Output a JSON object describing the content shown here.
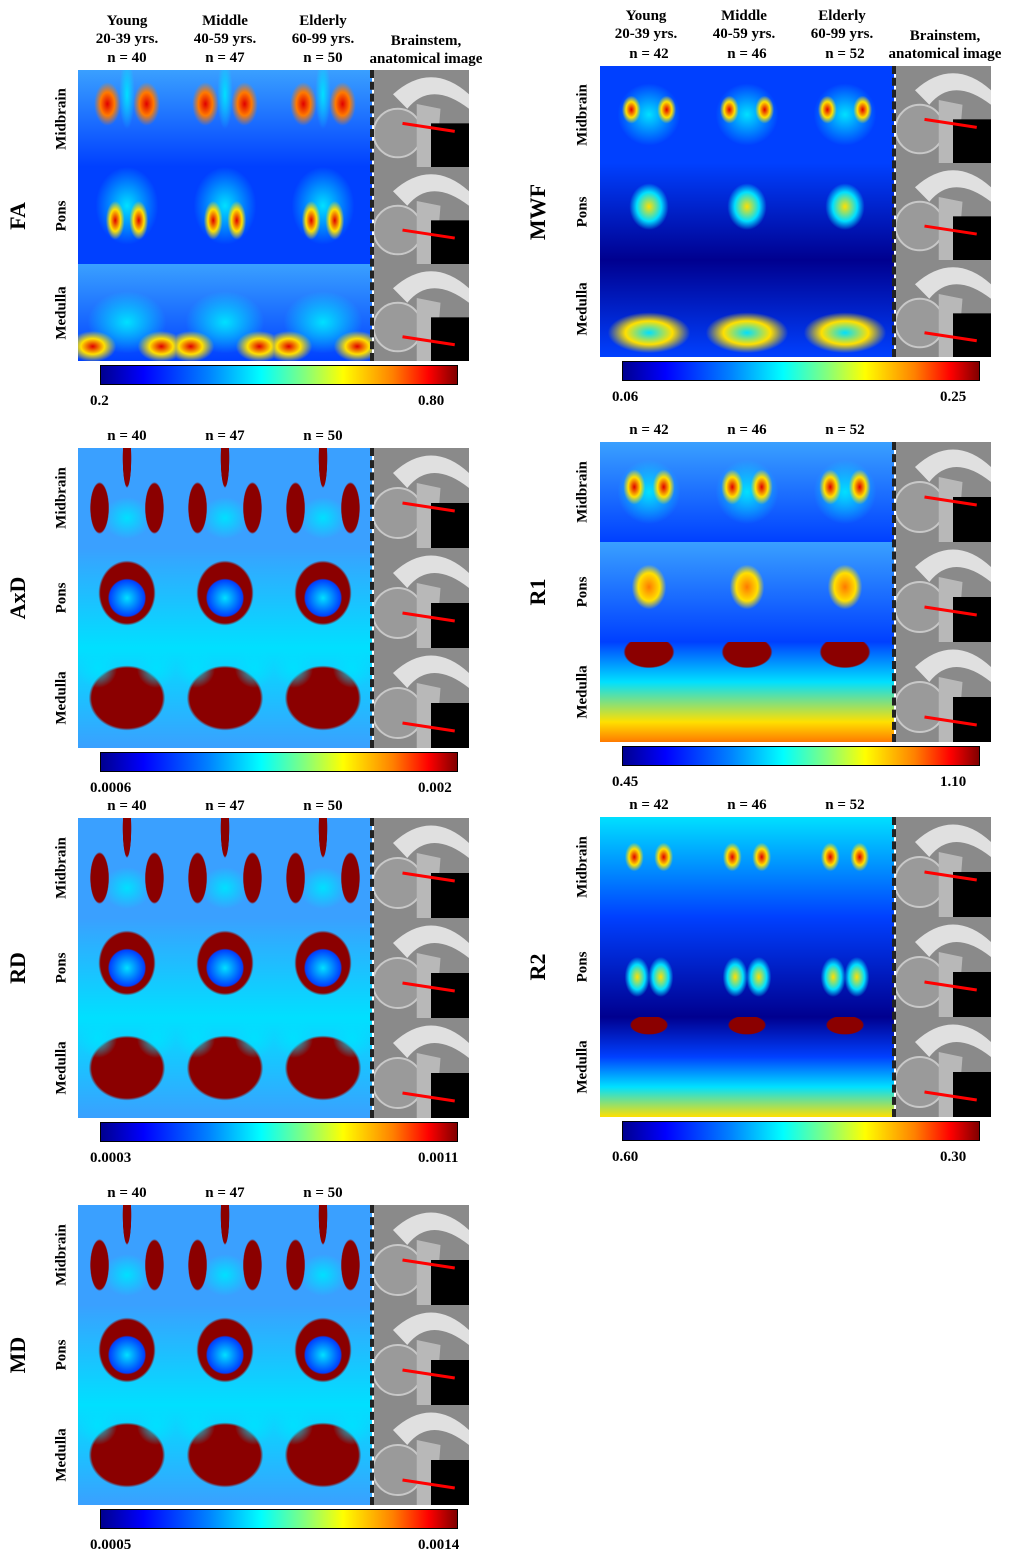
{
  "columns": {
    "age_groups": [
      {
        "group": "Young",
        "years": "20-39 yrs."
      },
      {
        "group": "Middle",
        "years": "40-59 yrs."
      },
      {
        "group": "Elderly",
        "years": "60-99 yrs."
      }
    ],
    "anatomical_header": [
      "Brainstem,",
      "anatomical image"
    ]
  },
  "regions": [
    "Midbrain",
    "Pons",
    "Medulla"
  ],
  "left_panels": [
    {
      "metric": "FA",
      "n": [
        "n = 40",
        "n = 47",
        "n = 50"
      ],
      "cbar_min": "0.2",
      "cbar_max": "0.80",
      "style": "fa"
    },
    {
      "metric": "AxD",
      "n": [
        "n = 40",
        "n = 47",
        "n = 50"
      ],
      "cbar_min": "0.0006",
      "cbar_max": "0.002",
      "style": "diff"
    },
    {
      "metric": "RD",
      "n": [
        "n = 40",
        "n = 47",
        "n = 50"
      ],
      "cbar_min": "0.0003",
      "cbar_max": "0.0011",
      "style": "diff"
    },
    {
      "metric": "MD",
      "n": [
        "n = 40",
        "n = 47",
        "n = 50"
      ],
      "cbar_min": "0.0005",
      "cbar_max": "0.0014",
      "style": "diff"
    }
  ],
  "right_panels": [
    {
      "metric": "MWF",
      "n": [
        "n = 42",
        "n = 46",
        "n = 52"
      ],
      "cbar_min": "0.06",
      "cbar_max": "0.25",
      "style": "mwf"
    },
    {
      "metric": "R1",
      "n": [
        "n = 42",
        "n = 46",
        "n = 52"
      ],
      "cbar_min": "0.45",
      "cbar_max": "1.10",
      "style": "r1"
    },
    {
      "metric": "R2",
      "n": [
        "n = 42",
        "n = 46",
        "n = 52"
      ],
      "cbar_min": "0.60",
      "cbar_max": "0.30",
      "style": "r2"
    }
  ],
  "palette": {
    "dark_blue": "#00008f",
    "blue": "#0040ff",
    "light_blue": "#3aa0ff",
    "cyan": "#00e0ff",
    "yellow": "#ffe000",
    "orange": "#ff7a00",
    "red": "#e00000",
    "dark_red": "#8b0000",
    "slice_line": "#ff0000"
  }
}
